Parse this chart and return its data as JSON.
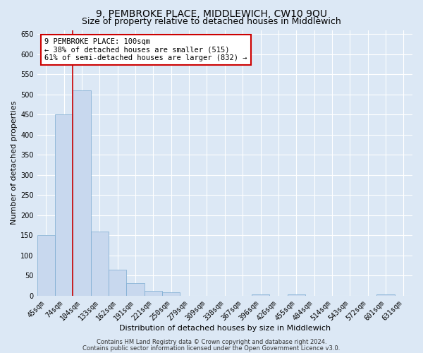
{
  "title": "9, PEMBROKE PLACE, MIDDLEWICH, CW10 9QU",
  "subtitle": "Size of property relative to detached houses in Middlewich",
  "xlabel": "Distribution of detached houses by size in Middlewich",
  "ylabel": "Number of detached properties",
  "bin_labels": [
    "45sqm",
    "74sqm",
    "104sqm",
    "133sqm",
    "162sqm",
    "191sqm",
    "221sqm",
    "250sqm",
    "279sqm",
    "309sqm",
    "338sqm",
    "367sqm",
    "396sqm",
    "426sqm",
    "455sqm",
    "484sqm",
    "514sqm",
    "543sqm",
    "572sqm",
    "601sqm",
    "631sqm"
  ],
  "bar_heights": [
    150,
    450,
    510,
    160,
    65,
    32,
    13,
    8,
    0,
    0,
    0,
    0,
    3,
    0,
    3,
    0,
    0,
    0,
    0,
    3,
    0
  ],
  "bar_color": "#c8d8ee",
  "bar_edge_color": "#7aaad0",
  "annotation_title": "9 PEMBROKE PLACE: 100sqm",
  "annotation_line1": "← 38% of detached houses are smaller (515)",
  "annotation_line2": "61% of semi-detached houses are larger (832) →",
  "annotation_box_facecolor": "#ffffff",
  "annotation_box_edgecolor": "#cc0000",
  "ylim": [
    0,
    660
  ],
  "yticks": [
    0,
    50,
    100,
    150,
    200,
    250,
    300,
    350,
    400,
    450,
    500,
    550,
    600,
    650
  ],
  "footer1": "Contains HM Land Registry data © Crown copyright and database right 2024.",
  "footer2": "Contains public sector information licensed under the Open Government Licence v3.0.",
  "bg_color": "#dce8f5",
  "plot_bg_color": "#dce8f5",
  "grid_color": "#ffffff",
  "title_fontsize": 10,
  "subtitle_fontsize": 9,
  "axis_label_fontsize": 8,
  "tick_fontsize": 7,
  "annotation_fontsize": 7.5,
  "footer_fontsize": 6
}
